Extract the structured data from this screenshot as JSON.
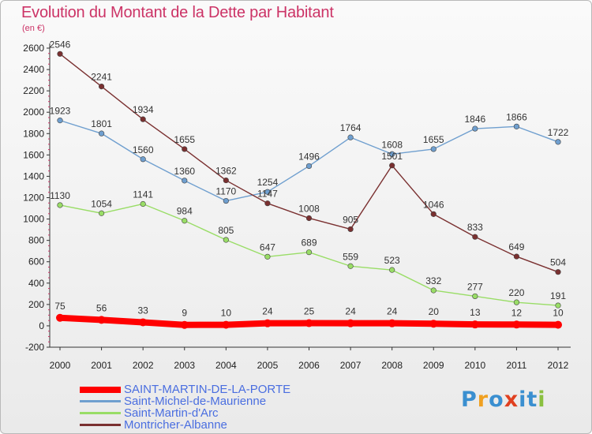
{
  "header": {
    "title": "Evolution du Montant de la Dette par Habitant",
    "unit": "(en €)"
  },
  "logo": {
    "text": "Proxiti",
    "letters": [
      {
        "ch": "P",
        "color": "#3a8fd0"
      },
      {
        "ch": "r",
        "color": "#f0a020"
      },
      {
        "ch": "o",
        "color": "#3a8fd0"
      },
      {
        "ch": "x",
        "color": "#e04020"
      },
      {
        "ch": "i",
        "color": "#3a8fd0"
      },
      {
        "ch": "t",
        "color": "#3a8fd0"
      },
      {
        "ch": "i",
        "color": "#8ac040"
      }
    ]
  },
  "chart_data": {
    "type": "line",
    "title": "Evolution du Montant de la Dette par Habitant",
    "ylabel": "(en €)",
    "x": [
      "2000",
      "2001",
      "2002",
      "2003",
      "2004",
      "2005",
      "2006",
      "2007",
      "2008",
      "2009",
      "2010",
      "2011",
      "2012"
    ],
    "ylim": [
      -200,
      2600
    ],
    "yticks": [
      -200,
      0,
      200,
      400,
      600,
      800,
      1000,
      1200,
      1400,
      1600,
      1800,
      2000,
      2200,
      2400,
      2600
    ],
    "grid": false,
    "legend_position": "bottom-left",
    "series": [
      {
        "name": "SAINT-MARTIN-DE-LA-PORTE",
        "color": "#ff0000",
        "values": [
          75,
          56,
          33,
          9,
          10,
          24,
          25,
          24,
          24,
          20,
          13,
          12,
          10
        ]
      },
      {
        "name": "Saint-Michel-de-Maurienne",
        "color": "#6f9fcf",
        "values": [
          1923,
          1801,
          1560,
          1360,
          1170,
          1254,
          1496,
          1764,
          1608,
          1655,
          1846,
          1866,
          1722
        ]
      },
      {
        "name": "Saint-Martin-d'Arc",
        "color": "#99dd66",
        "values": [
          1130,
          1054,
          1141,
          984,
          805,
          647,
          689,
          559,
          523,
          332,
          277,
          220,
          191
        ]
      },
      {
        "name": "Montricher-Albanne",
        "color": "#7a3030",
        "values": [
          2546,
          2241,
          1934,
          1655,
          1362,
          1147,
          1008,
          905,
          1501,
          1046,
          833,
          649,
          504
        ]
      }
    ]
  }
}
